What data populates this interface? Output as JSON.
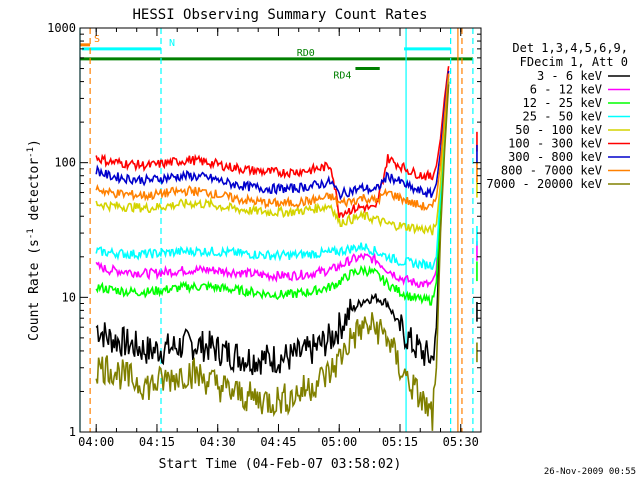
{
  "chart_data": {
    "type": "line",
    "title": "HESSI Observing Summary Count Rates",
    "xlabel": "Start Time (04-Feb-07 03:58:02)",
    "ylabel_main": "Count Rate (s",
    "ylabel_sup1": "-1",
    "ylabel_mid": " detector",
    "ylabel_sup2": "-1",
    "ylabel_end": ")",
    "xlim_minutes": [
      -2,
      97
    ],
    "ylim": [
      1,
      1000
    ],
    "yscale": "log",
    "x_ticks": [
      {
        "m": 2,
        "label": "04:00"
      },
      {
        "m": 17,
        "label": "04:15"
      },
      {
        "m": 32,
        "label": "04:30"
      },
      {
        "m": 47,
        "label": "04:45"
      },
      {
        "m": 62,
        "label": "05:00"
      },
      {
        "m": 77,
        "label": "05:15"
      },
      {
        "m": 92,
        "label": "05:30"
      }
    ],
    "y_ticks": [
      {
        "v": 1,
        "label": "1"
      },
      {
        "v": 10,
        "label": "10"
      },
      {
        "v": 100,
        "label": "100"
      },
      {
        "v": 1000,
        "label": "1000"
      }
    ],
    "legend_title": [
      "Det 1,3,4,5,6,9,",
      "FDecim 1, Att 0"
    ],
    "legend_placement": "right",
    "timestamp": "26-Nov-2009 00:55",
    "series": [
      {
        "name": "3 - 6 keV",
        "color": "#000000",
        "x": [
          2,
          5,
          10,
          15,
          20,
          25,
          30,
          35,
          40,
          45,
          50,
          55,
          60,
          62,
          65,
          68,
          71,
          74,
          77,
          80,
          83,
          85,
          86,
          87,
          88,
          89
        ],
        "y": [
          6,
          5,
          4.5,
          4,
          4.2,
          4.5,
          4.3,
          3.8,
          3.5,
          3.5,
          3.6,
          4,
          5,
          6,
          8,
          9.5,
          10,
          9,
          6,
          4.5,
          3.8,
          3.5,
          6,
          40,
          150,
          400
        ]
      },
      {
        "name": "6 - 12 keV",
        "color": "#ff00ff",
        "x": [
          2,
          5,
          10,
          15,
          20,
          25,
          30,
          35,
          40,
          45,
          50,
          55,
          60,
          62,
          65,
          68,
          71,
          74,
          77,
          80,
          83,
          85,
          86,
          87,
          88,
          89
        ],
        "y": [
          17,
          16,
          15.5,
          15,
          15.5,
          16,
          16,
          15.5,
          15,
          14.5,
          14.5,
          15,
          16,
          17,
          19,
          20,
          19,
          16,
          14,
          13,
          12.5,
          12.5,
          16,
          60,
          200,
          450
        ]
      },
      {
        "name": "12 - 25 keV",
        "color": "#00ff00",
        "x": [
          2,
          5,
          10,
          15,
          20,
          25,
          30,
          35,
          40,
          45,
          50,
          55,
          60,
          62,
          65,
          68,
          71,
          74,
          77,
          80,
          83,
          85,
          86,
          87,
          88,
          89
        ],
        "y": [
          12,
          11.5,
          11,
          11,
          11.5,
          12,
          12,
          11.5,
          11,
          10.5,
          10.5,
          11,
          12,
          13,
          15,
          16,
          15,
          12.5,
          11,
          10,
          9.5,
          9.5,
          13,
          50,
          180,
          420
        ]
      },
      {
        "name": "25 - 50 keV",
        "color": "#00ffff",
        "x": [
          2,
          5,
          10,
          15,
          20,
          25,
          30,
          35,
          40,
          45,
          50,
          55,
          60,
          62,
          65,
          68,
          71,
          74,
          77,
          80,
          83,
          85,
          86,
          87,
          88,
          89
        ],
        "y": [
          22,
          21.5,
          21,
          21,
          21.5,
          22,
          22,
          21.5,
          21,
          20.5,
          20.5,
          21,
          21.5,
          22,
          23,
          24,
          22,
          20,
          18.5,
          18,
          17.5,
          17.5,
          20,
          60,
          200,
          450
        ]
      },
      {
        "name": "50 - 100 keV",
        "color": "#d4d400",
        "x": [
          2,
          5,
          10,
          15,
          20,
          25,
          30,
          35,
          40,
          45,
          50,
          55,
          60,
          62,
          65,
          68,
          71,
          74,
          77,
          80,
          83,
          85,
          86,
          87,
          88,
          89
        ],
        "y": [
          50,
          48,
          47,
          46,
          48,
          50,
          49,
          46,
          44,
          43,
          43,
          45,
          48,
          36,
          38,
          40,
          38,
          35,
          34,
          33,
          32,
          31,
          35,
          70,
          200,
          450
        ]
      },
      {
        "name": "100 - 300 keV",
        "color": "#ff0000",
        "x": [
          2,
          5,
          10,
          15,
          20,
          25,
          30,
          35,
          40,
          45,
          50,
          55,
          60,
          62,
          65,
          68,
          71,
          74,
          77,
          80,
          83,
          85,
          86,
          87,
          88,
          89
        ],
        "y": [
          110,
          102,
          98,
          95,
          100,
          105,
          100,
          93,
          88,
          85,
          85,
          88,
          95,
          42,
          45,
          47,
          45,
          108,
          95,
          85,
          80,
          78,
          95,
          150,
          300,
          520
        ]
      },
      {
        "name": "300 - 800 keV",
        "color": "#0000cc",
        "x": [
          2,
          5,
          10,
          15,
          20,
          25,
          30,
          35,
          40,
          45,
          50,
          55,
          60,
          62,
          65,
          68,
          71,
          74,
          77,
          80,
          83,
          85,
          86,
          87,
          88,
          89
        ],
        "y": [
          88,
          80,
          76,
          74,
          78,
          80,
          77,
          70,
          66,
          64,
          64,
          67,
          72,
          58,
          62,
          65,
          62,
          80,
          72,
          64,
          60,
          58,
          70,
          120,
          250,
          480
        ]
      },
      {
        "name": "800 - 7000 keV",
        "color": "#ff8000",
        "x": [
          2,
          5,
          10,
          15,
          20,
          25,
          30,
          35,
          40,
          45,
          50,
          55,
          60,
          62,
          65,
          68,
          71,
          74,
          77,
          80,
          83,
          85,
          86,
          87,
          88,
          89
        ],
        "y": [
          65,
          60,
          58,
          57,
          60,
          62,
          60,
          55,
          52,
          50,
          50,
          52,
          56,
          50,
          52,
          55,
          52,
          60,
          55,
          50,
          47,
          46,
          55,
          100,
          220,
          460
        ]
      },
      {
        "name": "7000 - 20000 keV",
        "color": "#808000",
        "x": [
          2,
          5,
          10,
          15,
          20,
          25,
          30,
          35,
          40,
          45,
          50,
          55,
          60,
          62,
          65,
          68,
          71,
          74,
          77,
          80,
          83,
          85,
          86,
          87,
          88,
          89
        ],
        "y": [
          3,
          3,
          2.5,
          2.2,
          2.5,
          2.8,
          2.4,
          2,
          1.8,
          1.7,
          1.8,
          2.2,
          2.8,
          3.5,
          5,
          6,
          6,
          5,
          3,
          2.2,
          1.6,
          1.3,
          3,
          30,
          120,
          380
        ]
      }
    ],
    "flags": [
      {
        "label": "S",
        "color": "#ff8000",
        "x_start": -2,
        "x_end": 0.5,
        "level": 750
      },
      {
        "label": "N",
        "color": "#00ffff",
        "x_start": -1.5,
        "x_end": 18,
        "level": 700
      },
      {
        "label": "RD0",
        "color": "#008000",
        "x_start": -2,
        "x_end": 95,
        "level": 590
      },
      {
        "label": "RD4",
        "color": "#008000",
        "x_start": 66,
        "x_end": 72,
        "level": 500
      },
      {
        "label": "",
        "color": "#00ffff",
        "x_start": 78,
        "x_end": 89.5,
        "level": 700
      }
    ],
    "vlines": [
      {
        "m": -2,
        "color": "#00ffff",
        "style": "solid"
      },
      {
        "m": 0.5,
        "color": "#ff8000",
        "style": "dashed"
      },
      {
        "m": 18,
        "color": "#00ffff",
        "style": "dashed"
      },
      {
        "m": 78.5,
        "color": "#00ffff",
        "style": "solid"
      },
      {
        "m": 89.5,
        "color": "#00ffff",
        "style": "dashed"
      },
      {
        "m": 91.3,
        "color": "#ff8000",
        "style": "solid"
      },
      {
        "m": 92.3,
        "color": "#ff8000",
        "style": "dashed"
      },
      {
        "m": 95,
        "color": "#00ffff",
        "style": "dashed"
      }
    ]
  }
}
